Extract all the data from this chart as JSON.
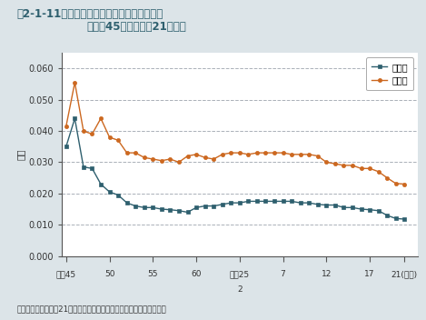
{
  "title_line1": "囲2-1-11　二酸化窒素濃度の年平均値の推移",
  "title_line2": "（昭和45年度～平成21年度）",
  "footer": "資料：環境省「平成21年度大気汚染状況について（報道発表資料）」",
  "ylabel": "濃度",
  "background_color": "#dce4e8",
  "plot_bg_color": "#ffffff",
  "ippan_color": "#2e5f6e",
  "jihai_color": "#cc6820",
  "years": [
    1970,
    1971,
    1972,
    1973,
    1974,
    1975,
    1976,
    1977,
    1978,
    1979,
    1980,
    1981,
    1982,
    1983,
    1984,
    1985,
    1986,
    1987,
    1988,
    1989,
    1990,
    1991,
    1992,
    1993,
    1994,
    1995,
    1996,
    1997,
    1998,
    1999,
    2000,
    2001,
    2002,
    2003,
    2004,
    2005,
    2006,
    2007,
    2008,
    2009
  ],
  "ippan_values": [
    0.035,
    0.044,
    0.0285,
    0.028,
    0.023,
    0.0205,
    0.0195,
    0.017,
    0.016,
    0.0155,
    0.0155,
    0.015,
    0.0148,
    0.0145,
    0.014,
    0.0155,
    0.016,
    0.016,
    0.0165,
    0.017,
    0.017,
    0.0175,
    0.0175,
    0.0175,
    0.0175,
    0.0175,
    0.0175,
    0.017,
    0.017,
    0.0165,
    0.0163,
    0.0163,
    0.0155,
    0.0155,
    0.015,
    0.0148,
    0.0145,
    0.013,
    0.012,
    0.0118
  ],
  "jihai_values": [
    0.0415,
    0.0555,
    0.04,
    0.039,
    0.044,
    0.038,
    0.037,
    0.033,
    0.033,
    0.0315,
    0.031,
    0.0305,
    0.031,
    0.03,
    0.032,
    0.0325,
    0.0315,
    0.031,
    0.0325,
    0.033,
    0.033,
    0.0325,
    0.033,
    0.033,
    0.033,
    0.033,
    0.0325,
    0.0325,
    0.0325,
    0.032,
    0.03,
    0.0295,
    0.029,
    0.029,
    0.028,
    0.028,
    0.027,
    0.025,
    0.0232,
    0.023
  ],
  "xtick_positions": [
    1970,
    1975,
    1980,
    1985,
    1990,
    1995,
    2000,
    2005,
    2009
  ],
  "xtick_labels_top": [
    "昭和45",
    "50",
    "55",
    "60",
    "平成25",
    "7",
    "12",
    "17",
    "21(年度)"
  ],
  "xtick_labels_bot": [
    "",
    "",
    "",
    "",
    "2",
    "",
    "",
    "",
    ""
  ],
  "xlim": [
    1969.5,
    2010.5
  ],
  "ylim": [
    0.0,
    0.065
  ],
  "yticks": [
    0.0,
    0.01,
    0.02,
    0.03,
    0.04,
    0.05,
    0.06
  ],
  "legend_ippan": "一般局",
  "legend_jihai": "自排局",
  "title_color": "#2e5f6e",
  "text_color": "#333333"
}
